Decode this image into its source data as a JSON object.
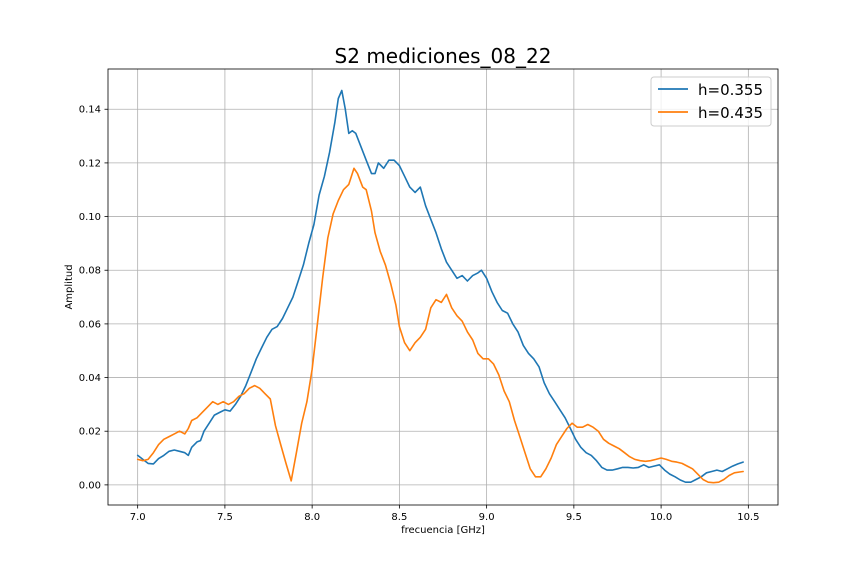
{
  "chart_data": {
    "type": "line",
    "title": "S2 mediciones_08_22",
    "xlabel": "frecuencia [GHz]",
    "ylabel": "Amplitud",
    "xlim": [
      6.83,
      10.67
    ],
    "ylim": [
      -0.0075,
      0.155
    ],
    "xticks": [
      7.0,
      7.5,
      8.0,
      8.5,
      9.0,
      9.5,
      10.0,
      10.5
    ],
    "yticks": [
      0.0,
      0.02,
      0.04,
      0.06,
      0.08,
      0.1,
      0.12,
      0.14
    ],
    "grid": true,
    "legend_position": "top-right",
    "series": [
      {
        "name": "h=0.355",
        "color": "#1f77b4",
        "points": [
          [
            7.0,
            0.011
          ],
          [
            7.03,
            0.0095
          ],
          [
            7.06,
            0.008
          ],
          [
            7.09,
            0.0078
          ],
          [
            7.12,
            0.0098
          ],
          [
            7.15,
            0.011
          ],
          [
            7.18,
            0.0125
          ],
          [
            7.21,
            0.013
          ],
          [
            7.24,
            0.0125
          ],
          [
            7.27,
            0.012
          ],
          [
            7.29,
            0.011
          ],
          [
            7.31,
            0.014
          ],
          [
            7.34,
            0.016
          ],
          [
            7.36,
            0.0165
          ],
          [
            7.38,
            0.02
          ],
          [
            7.41,
            0.023
          ],
          [
            7.44,
            0.026
          ],
          [
            7.47,
            0.027
          ],
          [
            7.5,
            0.028
          ],
          [
            7.53,
            0.0275
          ],
          [
            7.56,
            0.03
          ],
          [
            7.59,
            0.033
          ],
          [
            7.62,
            0.037
          ],
          [
            7.65,
            0.042
          ],
          [
            7.68,
            0.047
          ],
          [
            7.71,
            0.051
          ],
          [
            7.74,
            0.055
          ],
          [
            7.77,
            0.058
          ],
          [
            7.8,
            0.059
          ],
          [
            7.83,
            0.062
          ],
          [
            7.86,
            0.066
          ],
          [
            7.89,
            0.07
          ],
          [
            7.92,
            0.076
          ],
          [
            7.95,
            0.082
          ],
          [
            7.98,
            0.09
          ],
          [
            8.01,
            0.097
          ],
          [
            8.04,
            0.108
          ],
          [
            8.07,
            0.115
          ],
          [
            8.1,
            0.124
          ],
          [
            8.13,
            0.135
          ],
          [
            8.15,
            0.144
          ],
          [
            8.17,
            0.147
          ],
          [
            8.19,
            0.14
          ],
          [
            8.21,
            0.131
          ],
          [
            8.23,
            0.132
          ],
          [
            8.25,
            0.131
          ],
          [
            8.28,
            0.126
          ],
          [
            8.31,
            0.121
          ],
          [
            8.34,
            0.116
          ],
          [
            8.36,
            0.116
          ],
          [
            8.38,
            0.12
          ],
          [
            8.41,
            0.118
          ],
          [
            8.44,
            0.121
          ],
          [
            8.47,
            0.121
          ],
          [
            8.5,
            0.119
          ],
          [
            8.53,
            0.115
          ],
          [
            8.56,
            0.111
          ],
          [
            8.59,
            0.109
          ],
          [
            8.62,
            0.111
          ],
          [
            8.65,
            0.104
          ],
          [
            8.68,
            0.099
          ],
          [
            8.71,
            0.094
          ],
          [
            8.74,
            0.088
          ],
          [
            8.77,
            0.083
          ],
          [
            8.8,
            0.08
          ],
          [
            8.83,
            0.077
          ],
          [
            8.86,
            0.078
          ],
          [
            8.89,
            0.076
          ],
          [
            8.92,
            0.078
          ],
          [
            8.95,
            0.079
          ],
          [
            8.97,
            0.08
          ],
          [
            9.0,
            0.077
          ],
          [
            9.03,
            0.072
          ],
          [
            9.06,
            0.068
          ],
          [
            9.09,
            0.065
          ],
          [
            9.12,
            0.064
          ],
          [
            9.15,
            0.06
          ],
          [
            9.18,
            0.057
          ],
          [
            9.21,
            0.052
          ],
          [
            9.24,
            0.049
          ],
          [
            9.27,
            0.047
          ],
          [
            9.3,
            0.044
          ],
          [
            9.33,
            0.038
          ],
          [
            9.36,
            0.034
          ],
          [
            9.39,
            0.031
          ],
          [
            9.42,
            0.028
          ],
          [
            9.45,
            0.025
          ],
          [
            9.48,
            0.021
          ],
          [
            9.51,
            0.017
          ],
          [
            9.54,
            0.014
          ],
          [
            9.57,
            0.012
          ],
          [
            9.6,
            0.011
          ],
          [
            9.63,
            0.009
          ],
          [
            9.66,
            0.0065
          ],
          [
            9.69,
            0.0055
          ],
          [
            9.72,
            0.0055
          ],
          [
            9.75,
            0.006
          ],
          [
            9.78,
            0.0065
          ],
          [
            9.81,
            0.0065
          ],
          [
            9.84,
            0.0063
          ],
          [
            9.87,
            0.0065
          ],
          [
            9.9,
            0.0075
          ],
          [
            9.93,
            0.0065
          ],
          [
            9.96,
            0.007
          ],
          [
            9.99,
            0.0075
          ],
          [
            10.02,
            0.0055
          ],
          [
            10.05,
            0.004
          ],
          [
            10.08,
            0.003
          ],
          [
            10.11,
            0.0018
          ],
          [
            10.14,
            0.001
          ],
          [
            10.17,
            0.001
          ],
          [
            10.2,
            0.002
          ],
          [
            10.23,
            0.003
          ],
          [
            10.26,
            0.0045
          ],
          [
            10.29,
            0.005
          ],
          [
            10.32,
            0.0055
          ],
          [
            10.35,
            0.005
          ],
          [
            10.38,
            0.006
          ],
          [
            10.41,
            0.007
          ],
          [
            10.44,
            0.0078
          ],
          [
            10.47,
            0.0085
          ]
        ]
      },
      {
        "name": "h=0.435",
        "color": "#ff7f0e",
        "points": [
          [
            7.0,
            0.0095
          ],
          [
            7.03,
            0.009
          ],
          [
            7.06,
            0.0095
          ],
          [
            7.09,
            0.012
          ],
          [
            7.12,
            0.015
          ],
          [
            7.15,
            0.017
          ],
          [
            7.18,
            0.018
          ],
          [
            7.21,
            0.019
          ],
          [
            7.24,
            0.02
          ],
          [
            7.27,
            0.019
          ],
          [
            7.29,
            0.021
          ],
          [
            7.31,
            0.024
          ],
          [
            7.34,
            0.025
          ],
          [
            7.37,
            0.027
          ],
          [
            7.4,
            0.029
          ],
          [
            7.43,
            0.031
          ],
          [
            7.46,
            0.03
          ],
          [
            7.49,
            0.031
          ],
          [
            7.52,
            0.03
          ],
          [
            7.55,
            0.031
          ],
          [
            7.58,
            0.033
          ],
          [
            7.61,
            0.034
          ],
          [
            7.64,
            0.036
          ],
          [
            7.67,
            0.037
          ],
          [
            7.7,
            0.036
          ],
          [
            7.73,
            0.034
          ],
          [
            7.76,
            0.032
          ],
          [
            7.79,
            0.022
          ],
          [
            7.82,
            0.015
          ],
          [
            7.85,
            0.008
          ],
          [
            7.88,
            0.0015
          ],
          [
            7.91,
            0.012
          ],
          [
            7.94,
            0.023
          ],
          [
            7.97,
            0.031
          ],
          [
            8.0,
            0.043
          ],
          [
            8.03,
            0.06
          ],
          [
            8.06,
            0.077
          ],
          [
            8.09,
            0.092
          ],
          [
            8.12,
            0.101
          ],
          [
            8.15,
            0.106
          ],
          [
            8.18,
            0.11
          ],
          [
            8.21,
            0.112
          ],
          [
            8.24,
            0.118
          ],
          [
            8.26,
            0.116
          ],
          [
            8.29,
            0.111
          ],
          [
            8.31,
            0.11
          ],
          [
            8.34,
            0.102
          ],
          [
            8.36,
            0.094
          ],
          [
            8.39,
            0.087
          ],
          [
            8.42,
            0.082
          ],
          [
            8.45,
            0.075
          ],
          [
            8.48,
            0.067
          ],
          [
            8.5,
            0.059
          ],
          [
            8.53,
            0.053
          ],
          [
            8.56,
            0.05
          ],
          [
            8.59,
            0.053
          ],
          [
            8.62,
            0.055
          ],
          [
            8.65,
            0.058
          ],
          [
            8.68,
            0.066
          ],
          [
            8.71,
            0.069
          ],
          [
            8.74,
            0.068
          ],
          [
            8.77,
            0.071
          ],
          [
            8.8,
            0.066
          ],
          [
            8.83,
            0.063
          ],
          [
            8.86,
            0.061
          ],
          [
            8.89,
            0.057
          ],
          [
            8.92,
            0.054
          ],
          [
            8.95,
            0.049
          ],
          [
            8.98,
            0.047
          ],
          [
            9.01,
            0.047
          ],
          [
            9.04,
            0.045
          ],
          [
            9.07,
            0.041
          ],
          [
            9.1,
            0.035
          ],
          [
            9.13,
            0.031
          ],
          [
            9.16,
            0.024
          ],
          [
            9.19,
            0.018
          ],
          [
            9.22,
            0.012
          ],
          [
            9.25,
            0.006
          ],
          [
            9.28,
            0.003
          ],
          [
            9.31,
            0.003
          ],
          [
            9.34,
            0.006
          ],
          [
            9.37,
            0.01
          ],
          [
            9.4,
            0.015
          ],
          [
            9.43,
            0.018
          ],
          [
            9.46,
            0.021
          ],
          [
            9.49,
            0.023
          ],
          [
            9.52,
            0.0215
          ],
          [
            9.55,
            0.0215
          ],
          [
            9.58,
            0.0225
          ],
          [
            9.61,
            0.0215
          ],
          [
            9.64,
            0.02
          ],
          [
            9.67,
            0.017
          ],
          [
            9.7,
            0.0155
          ],
          [
            9.73,
            0.0145
          ],
          [
            9.76,
            0.0135
          ],
          [
            9.79,
            0.012
          ],
          [
            9.82,
            0.0105
          ],
          [
            9.85,
            0.0095
          ],
          [
            9.88,
            0.009
          ],
          [
            9.91,
            0.0088
          ],
          [
            9.94,
            0.009
          ],
          [
            9.97,
            0.0095
          ],
          [
            10.0,
            0.01
          ],
          [
            10.03,
            0.0095
          ],
          [
            10.06,
            0.0088
          ],
          [
            10.09,
            0.0085
          ],
          [
            10.12,
            0.008
          ],
          [
            10.15,
            0.007
          ],
          [
            10.18,
            0.006
          ],
          [
            10.21,
            0.004
          ],
          [
            10.24,
            0.002
          ],
          [
            10.27,
            0.001
          ],
          [
            10.3,
            0.0008
          ],
          [
            10.33,
            0.001
          ],
          [
            10.36,
            0.002
          ],
          [
            10.39,
            0.0035
          ],
          [
            10.42,
            0.0045
          ],
          [
            10.45,
            0.0048
          ],
          [
            10.47,
            0.005
          ]
        ]
      }
    ]
  }
}
